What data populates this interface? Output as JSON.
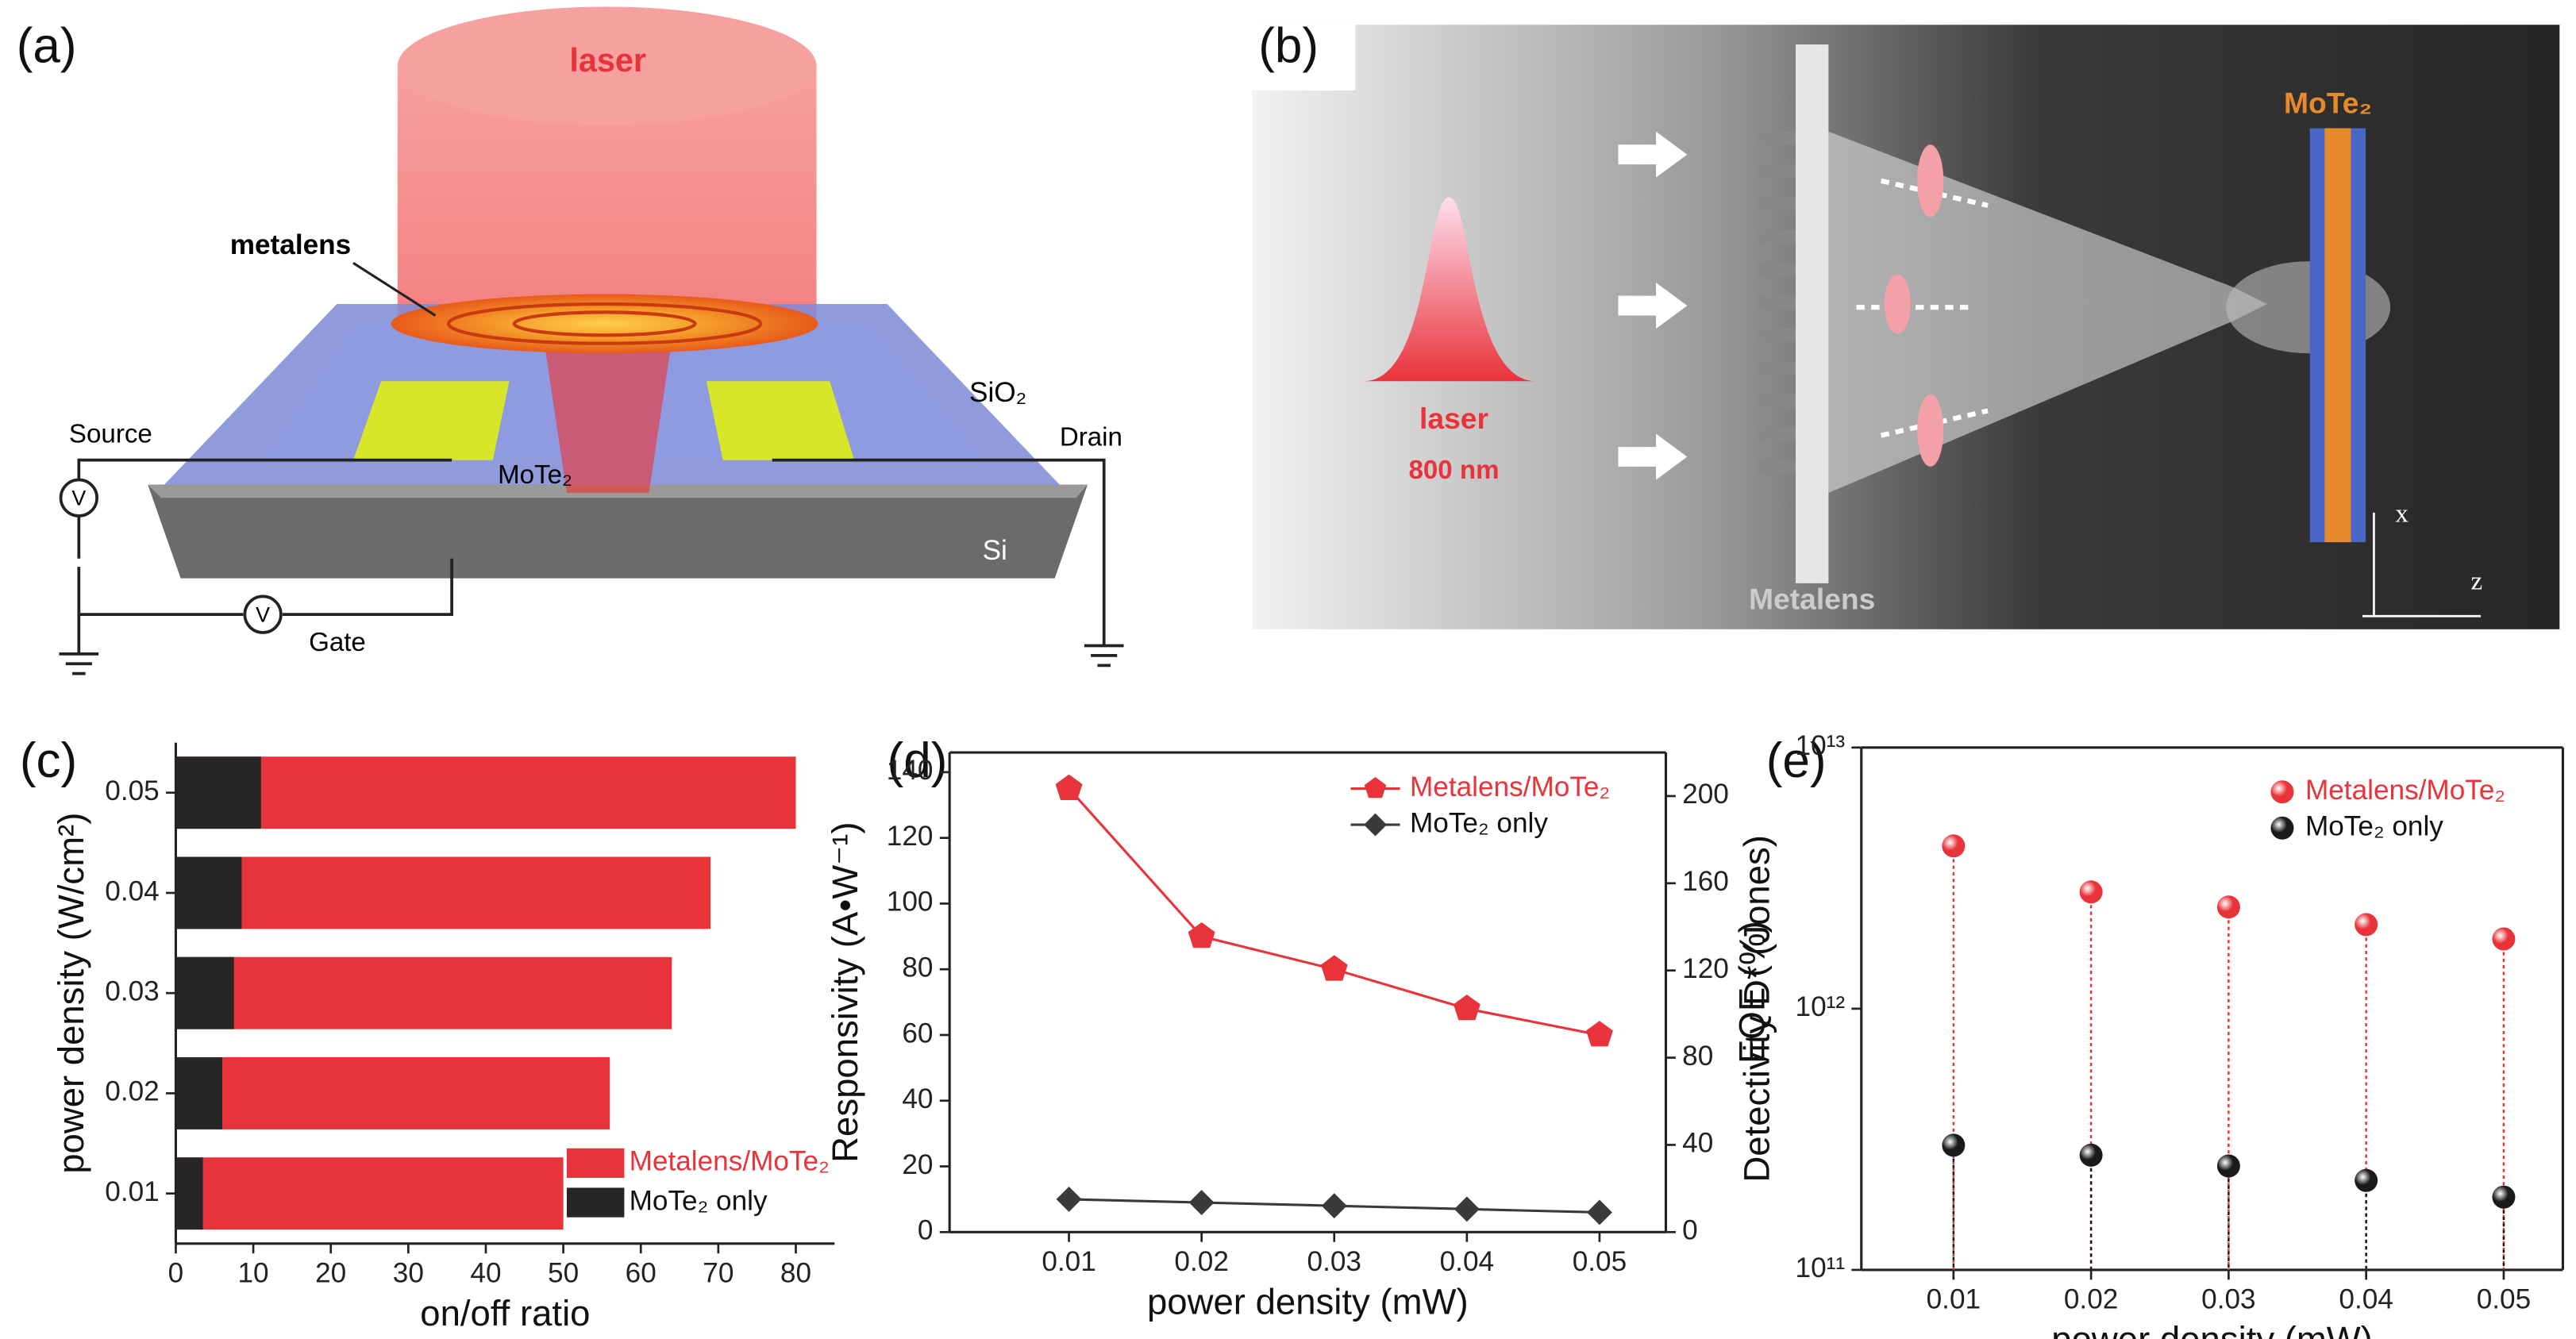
{
  "panel_labels": [
    "(a)",
    "(b)",
    "(c)",
    "(d)",
    "(e)"
  ],
  "diagram_a": {
    "laser": "laser",
    "metalens": "metalens",
    "sio2": "SiO₂",
    "source": "Source",
    "drain": "Drain",
    "mote2": "MoTe₂",
    "si": "Si",
    "voltmeter_1": "V",
    "voltmeter_2": "V",
    "gate": "Gate"
  },
  "diagram_b": {
    "mote2": "MoTe₂",
    "laser": "laser",
    "wavelength": "800 nm",
    "metalens": "Metalens",
    "axis_x": "x",
    "axis_z": "z"
  },
  "chart_data": [
    {
      "type": "bar",
      "orientation": "horizontal",
      "barmode": "overlay",
      "xlabel": "on/off ratio",
      "ylabel": "power density (W/cm²)",
      "categories": [
        "0.01",
        "0.02",
        "0.03",
        "0.04",
        "0.05"
      ],
      "series": [
        {
          "name": "Metalens/MoTe₂",
          "color": "#e8333a",
          "values": [
            50,
            56,
            64,
            69,
            80
          ]
        },
        {
          "name": "MoTe₂ only",
          "color": "#262626",
          "values": [
            3.5,
            6,
            7.5,
            8.5,
            11
          ]
        }
      ],
      "xlim": [
        0,
        85
      ],
      "xticks": [
        0,
        10,
        20,
        30,
        40,
        50,
        60,
        70,
        80
      ],
      "legend": "lower right"
    },
    {
      "type": "line",
      "xlabel": "power density (mW)",
      "ylabel": "Responsivity (A•W⁻¹)",
      "y2label": "EQE (%)",
      "x": [
        0.01,
        0.02,
        0.03,
        0.04,
        0.05
      ],
      "series": [
        {
          "name": "Metalens/MoTe₂",
          "color": "#e8333a",
          "marker": "pentagon",
          "values": [
            135,
            90,
            80,
            68,
            60
          ]
        },
        {
          "name": "MoTe₂ only",
          "color": "#3a3a3a",
          "marker": "diamond",
          "values": [
            10,
            9,
            8,
            7,
            6
          ]
        }
      ],
      "xlim": [
        0.001,
        0.055
      ],
      "xticks": [
        0.01,
        0.02,
        0.03,
        0.04,
        0.05
      ],
      "ylim": [
        0,
        146
      ],
      "yticks": [
        0,
        20,
        40,
        60,
        80,
        100,
        120,
        140
      ],
      "y2lim": [
        0,
        220
      ],
      "y2ticks": [
        0,
        40,
        80,
        120,
        160,
        200
      ],
      "legend": "upper right"
    },
    {
      "type": "scatter",
      "yscale": "log",
      "stems": true,
      "xlabel": "power density (mW)",
      "ylabel": "Detectivity D* (Jones)",
      "x": [
        0.01,
        0.02,
        0.03,
        0.04,
        0.05
      ],
      "series": [
        {
          "name": "Metalens/MoTe₂",
          "color": "#e8333a",
          "values": [
            4200000000000,
            2800000000000,
            2450000000000,
            2100000000000,
            1850000000000
          ]
        },
        {
          "name": "MoTe₂ only",
          "color": "#1a1a1a",
          "values": [
            300000000000,
            275000000000,
            250000000000,
            220000000000,
            190000000000
          ]
        }
      ],
      "xlim": [
        0.0033,
        0.0543
      ],
      "xticks": [
        0.01,
        0.02,
        0.03,
        0.04,
        0.05
      ],
      "ylim": [
        100000000000,
        10000000000000
      ],
      "yticks": [
        {
          "value": 100000000000,
          "label": "10¹¹"
        },
        {
          "value": 1000000000000,
          "label": "10¹²"
        },
        {
          "value": 10000000000000,
          "label": "10¹³"
        }
      ],
      "legend": "upper right"
    }
  ]
}
